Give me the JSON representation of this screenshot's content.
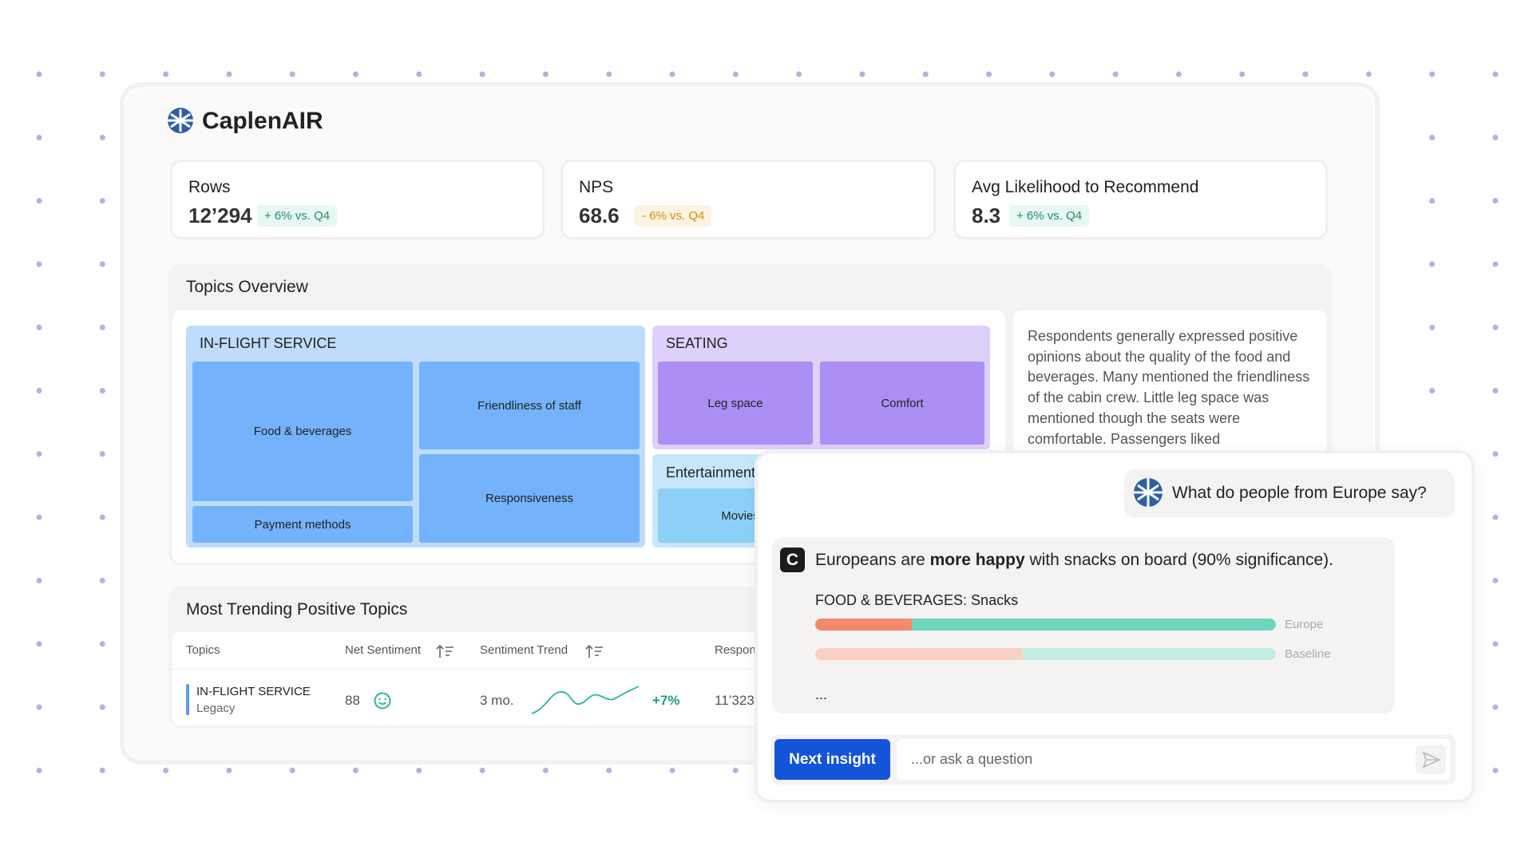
{
  "header": {
    "brand": "CaplenAIR"
  },
  "kpis": [
    {
      "label": "Rows",
      "value": "12’294",
      "delta": "+ 6% vs. Q4"
    },
    {
      "label": "NPS",
      "value": "68.6",
      "delta": "- 6% vs. Q4"
    },
    {
      "label": "Avg Likelihood to Recommend",
      "value": "8.3",
      "delta": "+ 6% vs. Q4"
    }
  ],
  "topics_overview": {
    "title": "Topics Overview",
    "groups": [
      {
        "label": "IN-FLIGHT SERVICE",
        "topics": [
          "Food & beverages",
          "Friendliness of staff",
          "Responsiveness",
          "Payment methods"
        ]
      },
      {
        "label": "SEATING",
        "topics": [
          "Leg space",
          "Comfort"
        ]
      },
      {
        "label": "Entertainment",
        "topics": [
          "Movies"
        ]
      }
    ],
    "summary": "Respondents generally expressed positive opinions about the quality of the food and beverages. Many mentioned the friendliness of the cabin crew. Little leg space was mentioned though the seats were comfortable. Passengers liked"
  },
  "trending": {
    "title": "Most Trending Positive Topics",
    "columns": [
      "Topics",
      "Net Sentiment",
      "Sentiment Trend",
      "Responses"
    ],
    "rows": [
      {
        "topic": "IN-FLIGHT SERVICE",
        "subtopic": "Legacy",
        "net_sentiment": "88",
        "period": "3 mo.",
        "trend": "+7%",
        "responses": "11’323"
      }
    ]
  },
  "chat": {
    "question": "What do people from Europe say?",
    "answer": {
      "before": "Europeans are ",
      "bold": "more happy",
      "after": " with snacks on board (90% significance)."
    },
    "chart_title": "FOOD & BEVERAGES: Snacks",
    "bars": [
      {
        "name": "Europe",
        "negative": 21,
        "positive": 79
      },
      {
        "name": "Baseline",
        "negative": 45,
        "positive": 55
      }
    ],
    "more": "...",
    "button": "Next insight",
    "placeholder": "...or ask a question"
  }
}
